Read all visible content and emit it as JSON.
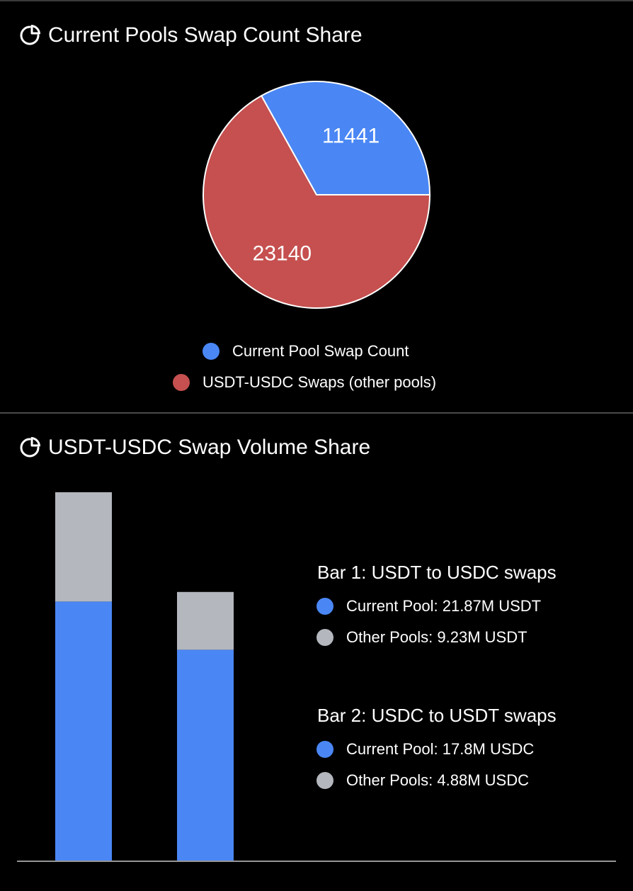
{
  "charts": {
    "pie": {
      "title": "Current Pools Swap Count Share",
      "icon": "pie-chart-icon"
    },
    "bars": {
      "title": "USDT-USDC Swap Volume Share",
      "icon": "pie-chart-icon",
      "bar1_label": "Bar 1: USDT to USDC swaps",
      "bar1_current": "Current Pool: 21.87M USDT",
      "bar1_other": "Other Pools: 9.23M USDT",
      "bar2_label": "Bar 2: USDC to USDT swaps",
      "bar2_current": "Current Pool: 17.8M USDC",
      "bar2_other": "Other Pools: 4.88M USDC"
    }
  },
  "colors": {
    "blue": "#4a87f5",
    "red": "#c5504f",
    "grey": "#b4b7bd",
    "background": "#000000"
  },
  "chart_data": [
    {
      "type": "pie",
      "title": "Current Pools Swap Count Share",
      "slices": [
        {
          "name": "Current Pool Swap Count",
          "value": 11441,
          "color": "#4a87f5"
        },
        {
          "name": "USDT-USDC Swaps (other pools)",
          "value": 23140,
          "color": "#c5504f"
        }
      ],
      "legend": "bottom"
    },
    {
      "type": "bar",
      "stacked": true,
      "title": "USDT-USDC Swap Volume Share",
      "categories": [
        "Bar 1: USDT to USDC swaps",
        "Bar 2: USDC to USDT swaps"
      ],
      "series": [
        {
          "name": "Current Pool",
          "values": [
            21.87,
            17.8
          ],
          "color": "#4a87f5"
        },
        {
          "name": "Other Pools",
          "values": [
            9.23,
            4.88
          ],
          "color": "#b4b7bd"
        }
      ],
      "legend": "right"
    }
  ]
}
